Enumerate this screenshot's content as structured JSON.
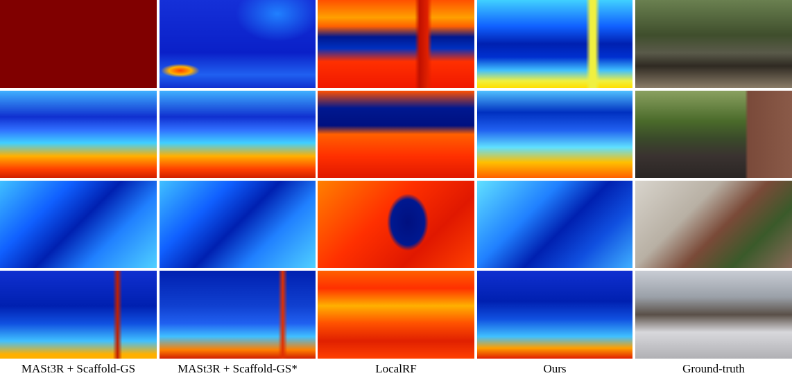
{
  "columns": [
    "MASt3R + Scaffold-GS",
    "MASt3R + Scaffold-GS*",
    "LocalRF",
    "Ours",
    "Ground-truth"
  ]
}
